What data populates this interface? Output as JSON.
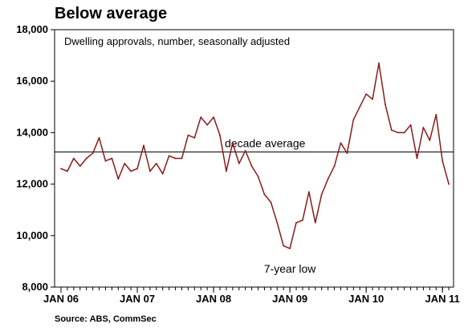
{
  "chart_data": {
    "type": "line",
    "title": "Below average",
    "subtitle": "Dwelling approvals, number, seasonally adjusted",
    "source": "Source: ABS, CommSec",
    "xlabel": "",
    "ylabel": "",
    "ylim": [
      8000,
      18000
    ],
    "yticks": [
      8000,
      10000,
      12000,
      14000,
      16000,
      18000
    ],
    "ytick_labels": [
      "8,000",
      "10,000",
      "12,000",
      "14,000",
      "16,000",
      "18,000"
    ],
    "x_start": "2006-01",
    "xticks": [
      0,
      12,
      24,
      36,
      48,
      60
    ],
    "xtick_labels": [
      "JAN 06",
      "JAN 07",
      "JAN 08",
      "JAN 09",
      "JAN 10",
      "JAN 11"
    ],
    "grid": false,
    "series": [
      {
        "name": "",
        "color": "#8b1a1a",
        "values": [
          12600,
          12500,
          13000,
          12700,
          13000,
          13200,
          13800,
          12900,
          13000,
          12200,
          12800,
          12500,
          12600,
          13500,
          12500,
          12800,
          12400,
          13100,
          13000,
          13000,
          13900,
          13800,
          14600,
          14300,
          14600,
          13900,
          12500,
          13600,
          12800,
          13300,
          12700,
          12300,
          11600,
          11300,
          10500,
          9600,
          9500,
          10500,
          10600,
          11700,
          10500,
          11600,
          12200,
          12700,
          13600,
          13200,
          14500,
          15000,
          15500,
          15300,
          16700,
          15100,
          14100,
          14000,
          14000,
          14300,
          13000,
          14200,
          13700,
          14700,
          12900,
          12000
        ]
      }
    ],
    "reference_line": {
      "value": 13250,
      "label": "decade average"
    },
    "annotations": [
      {
        "text": "7-year low"
      }
    ]
  }
}
